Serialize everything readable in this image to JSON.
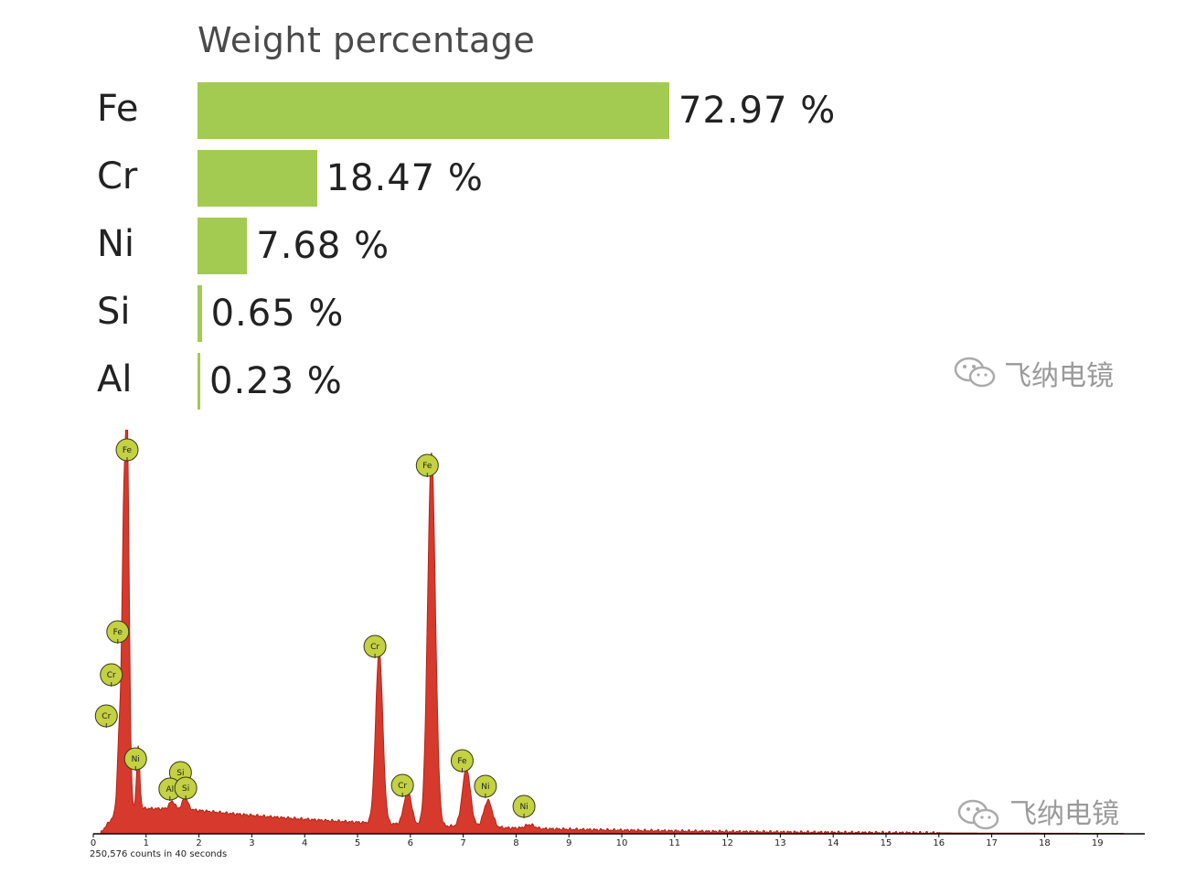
{
  "chart_data": [
    {
      "type": "bar",
      "title": "Weight percentage",
      "categories": [
        "Fe",
        "Cr",
        "Ni",
        "Si",
        "Al"
      ],
      "values": [
        72.97,
        18.47,
        7.68,
        0.65,
        0.23
      ],
      "value_labels": [
        "72.97 %",
        "18.47 %",
        "7.68 %",
        "0.65 %",
        "0.23 %"
      ],
      "orientation": "horizontal",
      "bar_color": "#a3cb52"
    },
    {
      "type": "area",
      "title": "",
      "xlabel": "",
      "ylabel": "",
      "xlim": [
        0,
        19.5
      ],
      "x_ticks": [
        "0",
        "1",
        "2",
        "3",
        "4",
        "5",
        "6",
        "7",
        "8",
        "9",
        "10",
        "11",
        "12",
        "13",
        "14",
        "15",
        "16",
        "17",
        "18",
        "19"
      ],
      "footer_note": "250,576 counts in 40 seconds",
      "fill_color": "#d63a2c",
      "label_color": "#c3d142",
      "peaks": [
        {
          "element": "Fe",
          "energy": 0.64,
          "rel_height": 1.0
        },
        {
          "element": "Cr",
          "energy": 5.41,
          "rel_height": 0.45
        },
        {
          "element": "Cr",
          "energy": 5.95,
          "rel_height": 0.09
        },
        {
          "element": "Fe",
          "energy": 6.4,
          "rel_height": 0.97
        },
        {
          "element": "Fe",
          "energy": 7.06,
          "rel_height": 0.15
        },
        {
          "element": "Ni",
          "energy": 7.47,
          "rel_height": 0.07
        },
        {
          "element": "Ni",
          "energy": 8.26,
          "rel_height": 0.01
        }
      ],
      "peak_labels": [
        {
          "element": "Fe",
          "energy": 0.64
        },
        {
          "element": "Fe",
          "energy": 0.55
        },
        {
          "element": "Cr",
          "energy": 0.48
        },
        {
          "element": "Cr",
          "energy": 0.42
        },
        {
          "element": "Ni",
          "energy": 0.8
        },
        {
          "element": "Si",
          "energy": 1.65
        },
        {
          "element": "Al",
          "energy": 1.45
        },
        {
          "element": "Si",
          "energy": 1.75
        },
        {
          "element": "Cr",
          "energy": 5.33
        },
        {
          "element": "Fe",
          "energy": 6.32
        },
        {
          "element": "Cr",
          "energy": 5.85
        },
        {
          "element": "Fe",
          "energy": 6.98
        },
        {
          "element": "Ni",
          "energy": 7.42
        },
        {
          "element": "Ni",
          "energy": 8.15
        }
      ]
    }
  ],
  "watermark": {
    "text": "飞纳电镜",
    "icon": "wechat-icon"
  }
}
